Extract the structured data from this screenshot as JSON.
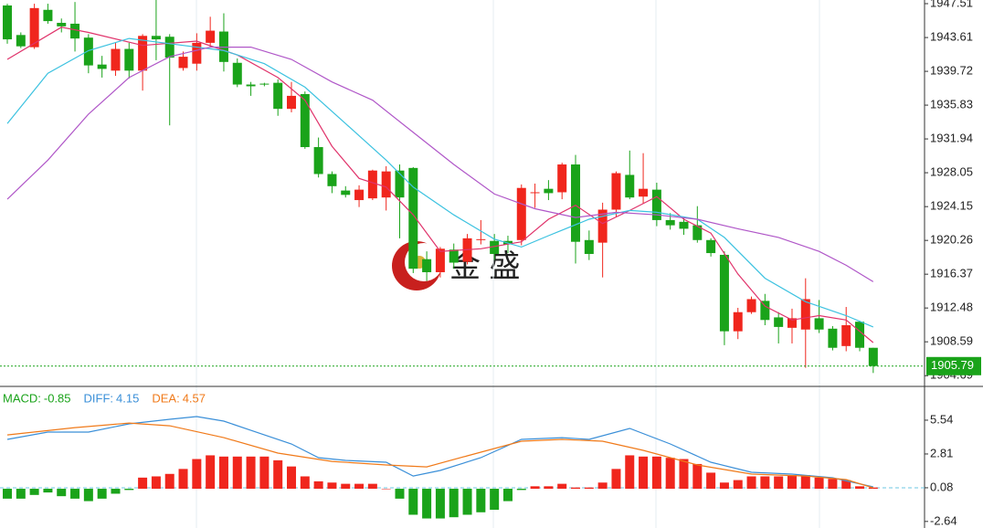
{
  "chart_data": [
    {
      "type": "candlestick",
      "watermark": "金 盛",
      "up_color": "#f0261d",
      "down_color": "#1aa31a",
      "open": [
        1947.3,
        1943.9,
        1942.5,
        1946.8,
        1945.3,
        1945.2,
        1943.6,
        1940.5,
        1939.8,
        1942.3,
        1939.8,
        1943.8,
        1943.7,
        1940.1,
        1940.6,
        1943.0,
        1944.3,
        1940.7,
        1938.2,
        1938.3,
        1938.4,
        1935.4,
        1937.1,
        1931.0,
        1927.9,
        1926.0,
        1924.9,
        1925.1,
        1925.2,
        1928.3,
        1928.6,
        1918.1,
        1916.6,
        1919.2,
        1917.8,
        1920.3,
        1920.2,
        1920.2,
        1920.3,
        1925.8,
        1926.2,
        1925.8,
        1929.0,
        1920.3,
        1920.0,
        1923.8,
        1927.8,
        1925.3,
        1926.1,
        1922.6,
        1922.4,
        1922.0,
        1920.3,
        1918.6,
        1909.8,
        1912.0,
        1913.3,
        1911.4,
        1910.2,
        1910.0,
        1911.3,
        1910.1,
        1908.1,
        1910.9,
        1907.9
      ],
      "high": [
        1947.5,
        1944.2,
        1947.5,
        1947.5,
        1945.8,
        1947.7,
        1944.0,
        1941.5,
        1943.0,
        1943.0,
        1944.0,
        1948.0,
        1944.0,
        1942.0,
        1944.1,
        1946.0,
        1946.4,
        1941.2,
        1938.5,
        1938.4,
        1938.8,
        1938.5,
        1937.4,
        1932.1,
        1928.2,
        1926.5,
        1926.6,
        1928.4,
        1928.8,
        1929.0,
        1928.7,
        1919.0,
        1919.5,
        1919.9,
        1921.0,
        1922.6,
        1921.0,
        1920.8,
        1926.7,
        1926.8,
        1927.2,
        1929.2,
        1930.1,
        1921.4,
        1924.6,
        1928.2,
        1930.6,
        1930.3,
        1926.9,
        1923.4,
        1923.0,
        1924.2,
        1920.5,
        1919.0,
        1912.5,
        1913.8,
        1914.1,
        1912.0,
        1912.4,
        1915.9,
        1913.4,
        1910.4,
        1912.6,
        1911.0,
        1907.9
      ],
      "low": [
        1942.9,
        1942.4,
        1942.3,
        1945.2,
        1944.2,
        1942.0,
        1939.5,
        1939.0,
        1939.2,
        1938.9,
        1937.5,
        1941.0,
        1933.5,
        1939.8,
        1939.8,
        1942.5,
        1939.7,
        1937.9,
        1936.9,
        1938.0,
        1934.6,
        1935.0,
        1930.8,
        1927.5,
        1925.7,
        1925.2,
        1924.1,
        1924.9,
        1923.7,
        1920.5,
        1916.5,
        1915.6,
        1916.0,
        1917.0,
        1917.5,
        1919.8,
        1918.0,
        1918.8,
        1919.7,
        1924.0,
        1924.9,
        1925.0,
        1917.6,
        1918.0,
        1916.0,
        1923.0,
        1925.0,
        1924.5,
        1921.9,
        1921.5,
        1920.9,
        1920.0,
        1918.4,
        1908.2,
        1908.9,
        1911.8,
        1910.5,
        1908.4,
        1908.4,
        1905.6,
        1909.6,
        1907.6,
        1907.5,
        1907.5,
        1905.0
      ],
      "close": [
        1943.4,
        1942.6,
        1947.0,
        1945.5,
        1944.9,
        1943.5,
        1940.4,
        1940.0,
        1942.3,
        1939.8,
        1943.8,
        1943.4,
        1941.3,
        1941.4,
        1943.0,
        1944.4,
        1940.8,
        1938.2,
        1938.0,
        1938.2,
        1935.4,
        1936.9,
        1931.0,
        1927.9,
        1926.5,
        1925.5,
        1926.1,
        1928.3,
        1928.2,
        1925.2,
        1917.0,
        1916.6,
        1919.3,
        1917.7,
        1920.5,
        1920.4,
        1918.7,
        1919.8,
        1926.3,
        1925.8,
        1925.7,
        1929.0,
        1920.1,
        1918.7,
        1923.8,
        1928.0,
        1925.2,
        1926.2,
        1922.6,
        1922.0,
        1921.6,
        1920.3,
        1918.8,
        1909.8,
        1912.0,
        1913.5,
        1911.1,
        1910.3,
        1911.3,
        1913.5,
        1910.0,
        1907.9,
        1910.5,
        1907.9,
        1905.8
      ],
      "lines": [
        {
          "color": "#e0336b",
          "x": [
            0,
            4,
            6,
            10,
            14,
            17,
            20,
            22,
            24,
            26,
            28,
            30,
            32,
            35,
            38,
            40,
            42,
            44,
            46,
            48,
            50,
            52,
            54,
            56,
            58,
            60,
            62,
            64
          ],
          "values": [
            1941.1,
            1944.8,
            1944.2,
            1942.7,
            1943.2,
            1941.6,
            1939.0,
            1936.4,
            1931.1,
            1927.4,
            1926.4,
            1923.2,
            1919.0,
            1919.3,
            1920.1,
            1922.7,
            1924.3,
            1922.2,
            1923.7,
            1925.3,
            1922.7,
            1921.1,
            1916.4,
            1912.7,
            1911.1,
            1911.6,
            1911.1,
            1908.5
          ]
        },
        {
          "color": "#3cc2e0",
          "x": [
            0,
            3,
            6,
            9,
            12,
            16,
            19,
            22,
            25,
            28,
            30,
            33,
            36,
            38,
            40,
            43,
            46,
            48,
            51,
            53,
            56,
            59,
            62,
            64
          ],
          "values": [
            1933.7,
            1939.5,
            1942.1,
            1943.5,
            1942.9,
            1942.1,
            1940.6,
            1937.9,
            1933.7,
            1929.5,
            1926.4,
            1923.2,
            1920.4,
            1919.5,
            1920.8,
            1922.7,
            1923.7,
            1923.5,
            1922.7,
            1920.6,
            1915.9,
            1913.2,
            1911.6,
            1910.3
          ]
        },
        {
          "color": "#b057c8",
          "x": [
            0,
            3,
            6,
            9,
            12,
            15,
            18,
            21,
            24,
            27,
            30,
            33,
            36,
            39,
            42,
            45,
            48,
            51,
            54,
            57,
            60,
            62,
            64
          ],
          "values": [
            1925.0,
            1929.5,
            1934.8,
            1939.0,
            1941.4,
            1942.5,
            1942.5,
            1941.1,
            1938.5,
            1936.4,
            1932.7,
            1929.0,
            1925.6,
            1923.9,
            1922.9,
            1923.5,
            1923.2,
            1922.7,
            1921.6,
            1920.6,
            1919.0,
            1917.4,
            1915.5
          ]
        }
      ],
      "last_price": 1905.79,
      "last_price_color": "#1aa31a",
      "ylim": [
        1903.56,
        1947.93
      ],
      "yticks": [
        1947.51,
        1943.61,
        1939.72,
        1935.83,
        1931.94,
        1928.05,
        1924.15,
        1920.26,
        1916.37,
        1912.48,
        1908.59,
        1904.69
      ]
    },
    {
      "type": "macd",
      "legend": [
        {
          "label": "MACD:",
          "value": -0.85,
          "color": "#1aa31a"
        },
        {
          "label": "DIFF:",
          "value": 4.15,
          "color": "#3a8fd8"
        },
        {
          "label": "DEA:",
          "value": 4.57,
          "color": "#f07a1a"
        }
      ],
      "up_color": "#f0261d",
      "down_color": "#1aa31a",
      "histogram": [
        -0.8,
        -0.8,
        -0.5,
        -0.3,
        -0.6,
        -0.8,
        -1.0,
        -0.8,
        -0.4,
        -0.1,
        0.9,
        1.0,
        1.2,
        1.6,
        2.4,
        2.7,
        2.6,
        2.6,
        2.6,
        2.6,
        2.3,
        1.8,
        1.0,
        0.6,
        0.5,
        0.4,
        0.4,
        0.4,
        0.0,
        -0.8,
        -2.1,
        -2.4,
        -2.4,
        -2.3,
        -2.1,
        -1.9,
        -1.7,
        -1.0,
        -0.1,
        0.2,
        0.2,
        0.4,
        0.1,
        0.1,
        0.5,
        1.6,
        2.7,
        2.6,
        2.6,
        2.5,
        2.4,
        2.0,
        1.3,
        0.5,
        0.7,
        1.0,
        1.0,
        1.0,
        1.1,
        1.1,
        0.9,
        0.8,
        0.7,
        0.2,
        0.1
      ],
      "lines": [
        {
          "color": "#3a8fd8",
          "x": [
            0,
            3,
            6,
            9,
            12,
            14,
            16,
            18,
            21,
            23,
            25,
            28,
            30,
            32,
            35,
            38,
            41,
            43,
            46,
            49,
            52,
            55,
            58,
            61,
            64
          ],
          "values": [
            3.99,
            4.58,
            4.58,
            5.24,
            5.61,
            5.83,
            5.46,
            4.72,
            3.62,
            2.51,
            2.29,
            2.14,
            1.03,
            1.48,
            2.51,
            3.99,
            4.13,
            3.99,
            4.87,
            3.62,
            2.14,
            1.33,
            1.18,
            0.89,
            0.15
          ]
        },
        {
          "color": "#f07a1a",
          "x": [
            0,
            5,
            9,
            12,
            16,
            20,
            24,
            28,
            31,
            34,
            38,
            41,
            44,
            47,
            51,
            55,
            59,
            62,
            64
          ],
          "values": [
            4.35,
            4.94,
            5.31,
            5.09,
            4.13,
            2.88,
            2.21,
            1.92,
            1.77,
            2.66,
            3.84,
            3.99,
            3.84,
            3.1,
            1.92,
            1.18,
            1.03,
            0.74,
            0.08
          ]
        }
      ],
      "ylim": [
        -3.17,
        8.12
      ],
      "yticks": [
        5.54,
        2.81,
        0.08,
        -2.64
      ]
    }
  ]
}
